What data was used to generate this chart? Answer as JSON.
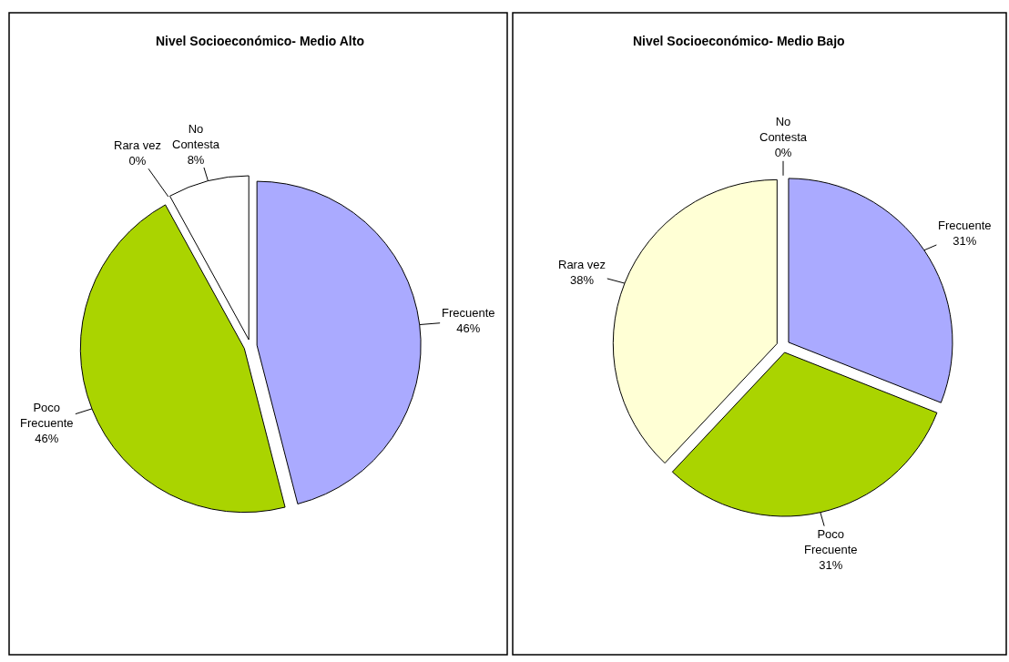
{
  "chart_data": [
    {
      "type": "pie",
      "title": "Nivel Socioeconómico- Medio Alto",
      "categories": [
        "Frecuente",
        "Poco Frecuente",
        "Rara vez",
        "No Contesta"
      ],
      "values": [
        46,
        46,
        0,
        8
      ],
      "value_labels": [
        "46%",
        "46%",
        "0%",
        "8%"
      ],
      "colors": [
        "#aaaaff",
        "#aad400",
        "#ffffd5",
        "#ffffff"
      ]
    },
    {
      "type": "pie",
      "title": "Nivel Socioeconómico- Medio Bajo",
      "categories": [
        "Frecuente",
        "Poco Frecuente",
        "Rara vez",
        "No Contesta"
      ],
      "values": [
        31,
        31,
        38,
        0
      ],
      "value_labels": [
        "31%",
        "31%",
        "38%",
        "0%"
      ],
      "colors": [
        "#aaaaff",
        "#aad400",
        "#ffffd5",
        "#ffffff"
      ]
    }
  ]
}
